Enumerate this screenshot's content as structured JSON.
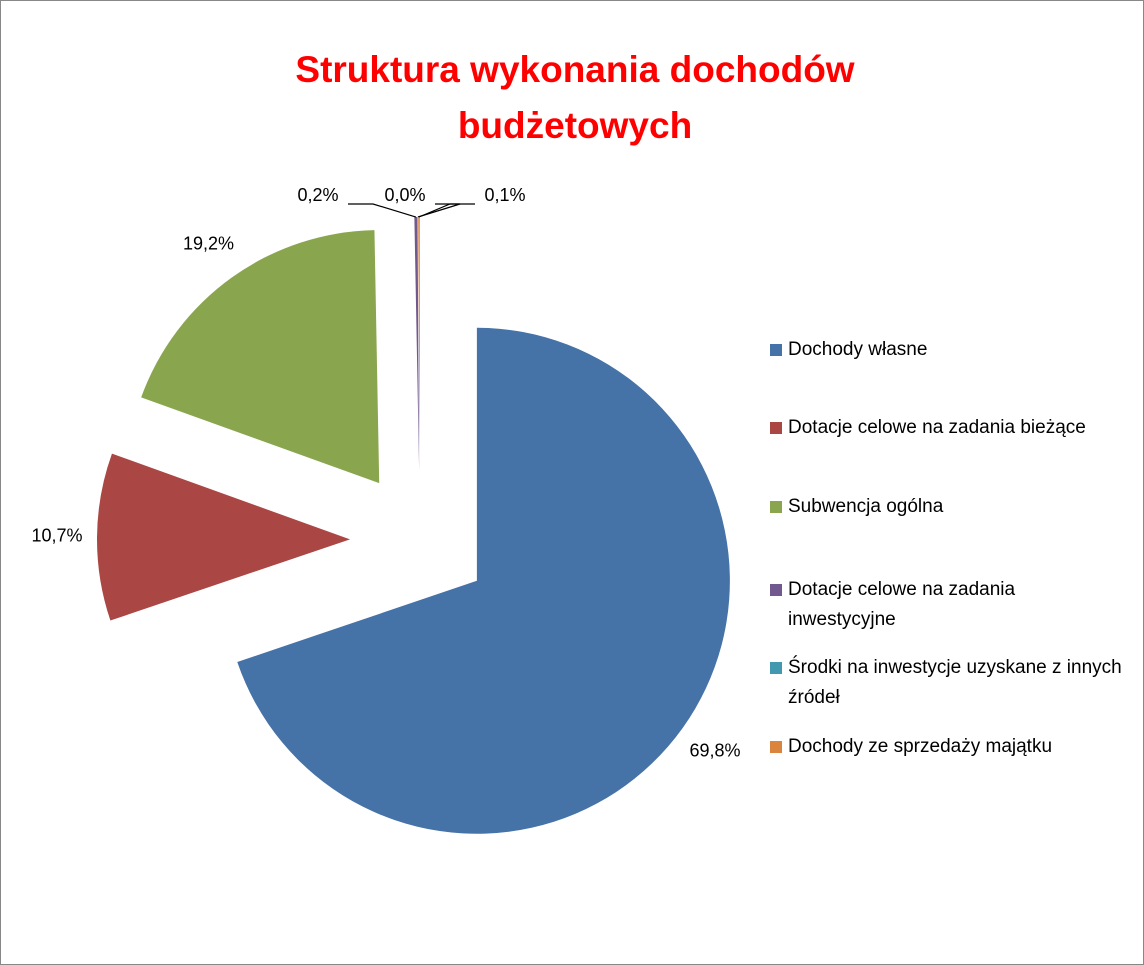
{
  "chart_data": {
    "type": "pie",
    "title": "Struktura wykonania dochodów budżetowych",
    "categories": [
      "Dochody własne",
      "Dotacje celowe na zadania bieżące",
      "Subwencja ogólna",
      "Dotacje celowe na zadania inwestycyjne",
      "Środki na inwestycje uzyskane z innych źródeł",
      "Dochody ze sprzedaży majątku"
    ],
    "values": [
      69.8,
      10.7,
      19.2,
      0.2,
      0.0,
      0.1
    ],
    "value_labels": [
      "69,8%",
      "10,7%",
      "19,2%",
      "0,2%",
      "0,0%",
      "0,1%"
    ],
    "colors": [
      "#4572a7",
      "#aa4643",
      "#89a54e",
      "#71588f",
      "#4198af",
      "#db843d"
    ],
    "legend": "right"
  }
}
